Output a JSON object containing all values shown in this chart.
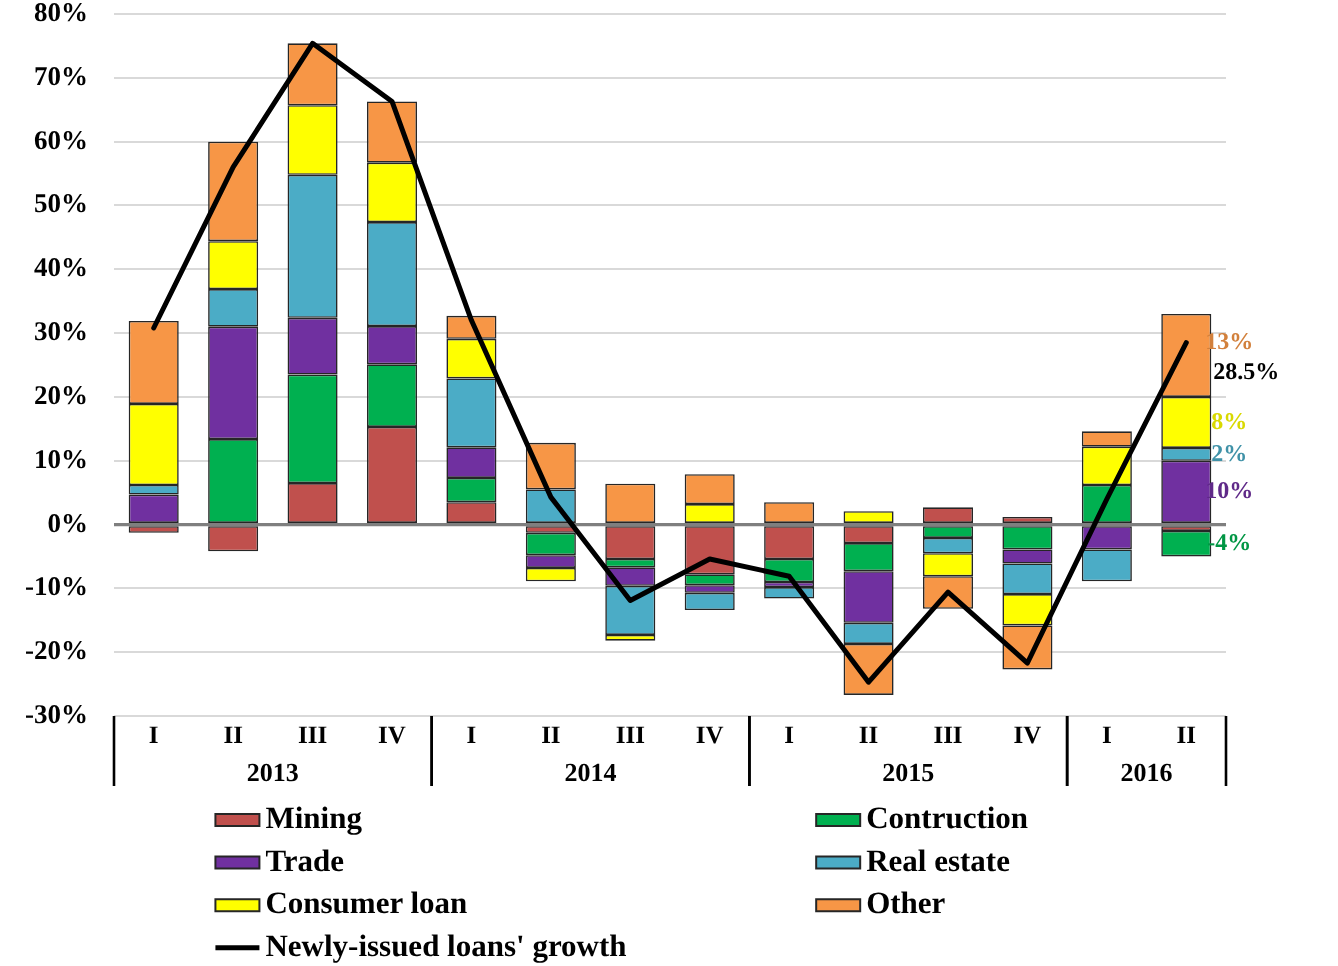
{
  "chart_data": {
    "type": "bar",
    "stacked": true,
    "grid": "y",
    "legend": "bottom",
    "categories": [
      "I",
      "II",
      "III",
      "IV",
      "I",
      "II",
      "III",
      "IV",
      "I",
      "II",
      "III",
      "IV",
      "I",
      "II"
    ],
    "ylim": [
      -30,
      80
    ],
    "yticks": [
      {
        "value": -30,
        "label": "-30%"
      },
      {
        "value": -20,
        "label": "-20%"
      },
      {
        "value": -10,
        "label": "-10%"
      },
      {
        "value": 0,
        "label": "0%"
      },
      {
        "value": 10,
        "label": "10%"
      },
      {
        "value": 20,
        "label": "20%"
      },
      {
        "value": 30,
        "label": "30%"
      },
      {
        "value": 40,
        "label": "40%"
      },
      {
        "value": 50,
        "label": "50%"
      },
      {
        "value": 60,
        "label": "60%"
      },
      {
        "value": 70,
        "label": "70%"
      },
      {
        "value": 80,
        "label": "80%"
      }
    ],
    "annotations": [
      "2013",
      "2014",
      "2015",
      "2016"
    ],
    "series": [
      {
        "name": "Mining",
        "color": "#c0504d",
        "values": [
          -1.3,
          -4.2,
          6.5,
          15.3,
          3.5,
          -1.3,
          -5.4,
          -7.8,
          -5.4,
          -2.9,
          2.7,
          1.2,
          null,
          -1.0
        ]
      },
      {
        "name": "Contruction",
        "color": "#00b050",
        "values": [
          null,
          13.4,
          17.0,
          9.8,
          3.8,
          -3.5,
          -1.3,
          -1.7,
          -3.6,
          -4.4,
          -2.1,
          -3.9,
          6.2,
          -4
        ],
        "value_labels": [
          null,
          null,
          null,
          null,
          null,
          null,
          null,
          null,
          null,
          null,
          null,
          null,
          null,
          "-4%"
        ]
      },
      {
        "name": "Trade",
        "color": "#7030a0",
        "values": [
          4.7,
          17.6,
          8.9,
          6.0,
          4.8,
          -2.0,
          -2.9,
          -1.2,
          -0.8,
          -8.1,
          null,
          -2.2,
          -3.9,
          10
        ],
        "value_labels": [
          null,
          null,
          null,
          null,
          null,
          null,
          null,
          null,
          null,
          null,
          null,
          null,
          null,
          "10%"
        ]
      },
      {
        "name": "Real estate",
        "color": "#4bacc6",
        "values": [
          1.5,
          5.9,
          22.4,
          16.3,
          10.8,
          5.5,
          -7.7,
          -2.7,
          -1.8,
          -3.3,
          -2.4,
          -4.8,
          -5.0,
          2
        ],
        "value_labels": [
          null,
          null,
          null,
          null,
          null,
          null,
          null,
          null,
          null,
          null,
          null,
          null,
          null,
          "2%"
        ]
      },
      {
        "name": "Consumer loan",
        "color": "#ffff00",
        "values": [
          12.7,
          7.5,
          10.9,
          9.3,
          6.2,
          -2.1,
          -0.9,
          3.2,
          null,
          2.1,
          -3.6,
          -4.9,
          6.0,
          8
        ],
        "value_labels": [
          null,
          null,
          null,
          null,
          null,
          null,
          null,
          null,
          null,
          null,
          null,
          null,
          null,
          "8%"
        ]
      },
      {
        "name": "Other",
        "color": "#f79646",
        "values": [
          13.0,
          15.6,
          9.7,
          9.6,
          3.6,
          7.3,
          6.4,
          4.7,
          3.5,
          -8.0,
          -5.1,
          -6.9,
          2.4,
          13
        ],
        "value_labels": [
          null,
          null,
          null,
          null,
          null,
          null,
          null,
          null,
          null,
          null,
          null,
          null,
          null,
          "13%"
        ]
      },
      {
        "name": "Newly-issued loans' growth",
        "type": "line",
        "color": "#000000",
        "values": [
          30.8,
          56.0,
          75.4,
          66.3,
          32.0,
          4.3,
          -11.9,
          -5.4,
          -8.1,
          -24.7,
          -10.6,
          -21.7,
          4.0,
          28.5
        ],
        "value_labels": [
          null,
          null,
          null,
          null,
          null,
          null,
          null,
          null,
          null,
          null,
          null,
          null,
          null,
          "28.5%"
        ]
      }
    ]
  }
}
